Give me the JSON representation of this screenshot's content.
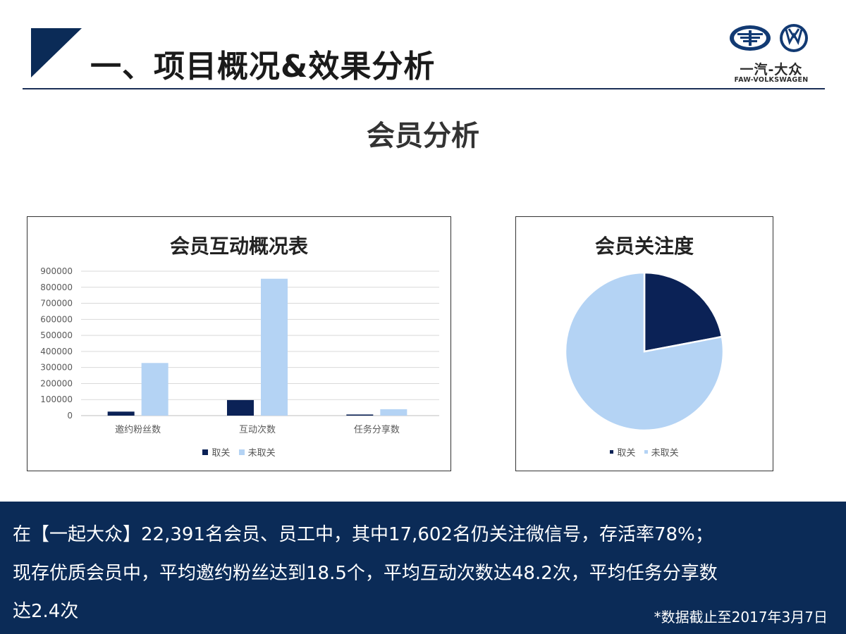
{
  "header": {
    "title": "一、项目概况&效果分析",
    "accent_color": "#1b2f57"
  },
  "logo": {
    "brand_cn": "一汽-大众",
    "brand_en": "FAW-VOLKSWAGEN"
  },
  "section_title": "会员分析",
  "colors": {
    "dark_series": "#0b2256",
    "light_series": "#b4d3f4",
    "footer_bg": "#0b2b57"
  },
  "chart_data": [
    {
      "type": "bar",
      "title": "会员互动概况表",
      "categories": [
        "邀约粉丝数",
        "互动次数",
        "任务分享数"
      ],
      "series": [
        {
          "name": "取关",
          "values": [
            25000,
            97000,
            7000
          ]
        },
        {
          "name": "未取关",
          "values": [
            328000,
            853000,
            40000
          ]
        }
      ],
      "ylim": [
        0,
        900000
      ],
      "yticks": [
        "0",
        "100000",
        "200000",
        "300000",
        "400000",
        "500000",
        "600000",
        "700000",
        "800000",
        "900000"
      ],
      "grid": true,
      "legend_position": "bottom"
    },
    {
      "type": "pie",
      "title": "会员关注度",
      "slices": [
        {
          "name": "取关",
          "value": 22
        },
        {
          "name": "未取关",
          "value": 78
        }
      ],
      "legend_position": "bottom"
    }
  ],
  "footer": {
    "line1": "在【一起大众】22,391名会员、员工中，其中17,602名仍关注微信号，存活率78%；",
    "line2": "现存优质会员中，平均邀约粉丝达到18.5个，平均互动次数达48.2次，平均任务分享数",
    "line3": "达2.4次",
    "note": "*数据截止至2017年3月7日"
  }
}
